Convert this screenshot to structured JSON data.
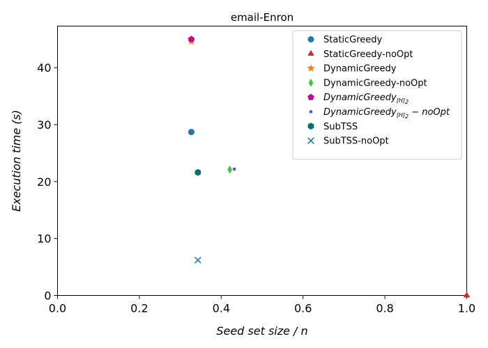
{
  "chart_data": {
    "type": "scatter",
    "title": "email-Enron",
    "xlabel": "Seed set size / n",
    "ylabel": "Execution time (s)",
    "xlim": [
      0,
      1.0
    ],
    "ylim": [
      0,
      47.3
    ],
    "xticks": [
      "0.0",
      "0.2",
      "0.4",
      "0.6",
      "0.8",
      "1.0"
    ],
    "xtick_values": [
      0,
      0.2,
      0.4,
      0.6,
      0.8,
      1.0
    ],
    "yticks": [
      "0",
      "10",
      "20",
      "30",
      "40"
    ],
    "ytick_values": [
      0,
      10,
      20,
      30,
      40
    ],
    "grid": false,
    "legend_position": "top-right",
    "series": [
      {
        "name": "StaticGreedy",
        "marker": "circle",
        "color": "#1f77b4",
        "x": [
          0.327
        ],
        "y": [
          28.7
        ]
      },
      {
        "name": "StaticGreedy-noOpt",
        "marker": "triangle",
        "color": "#d62728",
        "x": [
          1.0
        ],
        "y": [
          0.0
        ]
      },
      {
        "name": "DynamicGreedy",
        "marker": "star",
        "color": "#ff7f0e",
        "x": [
          0.327
        ],
        "y": [
          44.6
        ]
      },
      {
        "name": "DynamicGreedy-noOpt",
        "marker": "thin-diamond",
        "color": "#33cc33",
        "x": [
          0.421
        ],
        "y": [
          22.1
        ]
      },
      {
        "name": "DynamicGreedy_{[H]_2}",
        "name_main": "DynamicGreedy",
        "name_sub": "[H]",
        "name_subsub": "2",
        "marker": "pentagon",
        "color": "#cc0099",
        "x": [
          0.327
        ],
        "y": [
          45.0
        ]
      },
      {
        "name": "DynamicGreedy_{[H]_2} - noOpt",
        "name_main": "DynamicGreedy",
        "name_sub": "[H]",
        "name_subsub": "2",
        "name_tail": " − noOpt",
        "marker": "point",
        "color": "#4d4dff",
        "x": [
          0.432
        ],
        "y": [
          22.2
        ]
      },
      {
        "name": "SubTSS",
        "marker": "hexagon",
        "color": "#007070",
        "x": [
          0.343
        ],
        "y": [
          21.6
        ]
      },
      {
        "name": "SubTSS-noOpt",
        "marker": "x",
        "color": "#1f77b4",
        "x": [
          0.343
        ],
        "y": [
          6.2
        ]
      }
    ]
  }
}
